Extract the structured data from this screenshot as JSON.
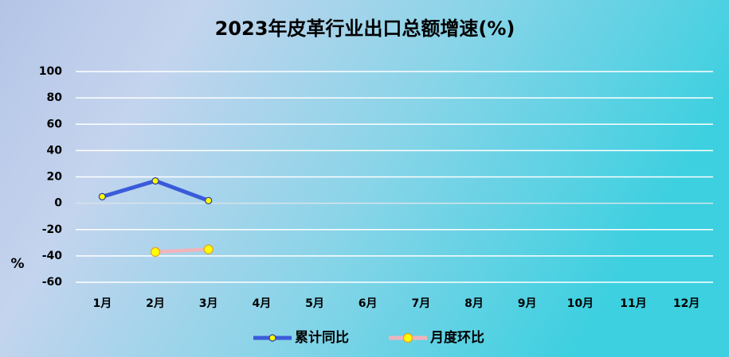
{
  "chart_data": {
    "type": "line",
    "title": "2023年皮革行业出口总额增速(%)",
    "y_label": "%",
    "categories": [
      "1月",
      "2月",
      "3月",
      "4月",
      "5月",
      "6月",
      "7月",
      "8月",
      "9月",
      "10月",
      "11月",
      "12月"
    ],
    "series": [
      {
        "name": "累计同比",
        "color": "#3a5bd9",
        "values": [
          5,
          17,
          2,
          null,
          null,
          null,
          null,
          null,
          null,
          null,
          null,
          null
        ]
      },
      {
        "name": "月度环比",
        "color": "#f0b4bc",
        "values": [
          null,
          -37,
          -35,
          null,
          null,
          null,
          null,
          null,
          null,
          null,
          null,
          null
        ]
      }
    ],
    "ylim": [
      -60,
      100
    ],
    "yticks": [
      -60,
      -40,
      -20,
      0,
      20,
      40,
      60,
      80,
      100
    ],
    "grid": true,
    "legend": "bottom"
  }
}
